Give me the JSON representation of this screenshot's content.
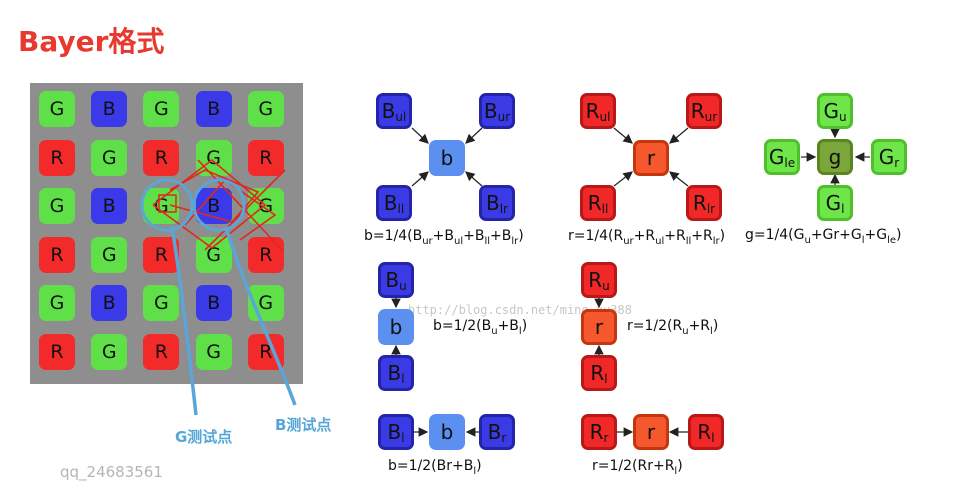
{
  "title": "Bayer格式",
  "grid": {
    "rows": [
      [
        "G",
        "B",
        "G",
        "B",
        "G"
      ],
      [
        "R",
        "G",
        "R",
        "G",
        "R"
      ],
      [
        "G",
        "B",
        "G",
        "B",
        "G"
      ],
      [
        "R",
        "G",
        "R",
        "G",
        "R"
      ],
      [
        "G",
        "B",
        "G",
        "B",
        "G"
      ],
      [
        "R",
        "G",
        "R",
        "G",
        "R"
      ]
    ]
  },
  "colors": {
    "G": "#5fe048",
    "B": "#3a3ae8",
    "R": "#f22a2a",
    "grid_bg": "#8e8e8e",
    "arrow_label": "#56a7d8",
    "title": "#e8392f"
  },
  "test_points": {
    "g": "G测试点",
    "b": "B测试点"
  },
  "author": "qq_24683561",
  "watermark": "http://blog.csdn.net/ming_xu388",
  "diagrams": {
    "b_four": {
      "center": "b",
      "ul": {
        "base": "B",
        "sub": "ul"
      },
      "ur": {
        "base": "B",
        "sub": "ur"
      },
      "ll": {
        "base": "B",
        "sub": "ll"
      },
      "lr": {
        "base": "B",
        "sub": "lr"
      },
      "formula": {
        "p0": "b=1/4(B",
        "s1": "ur",
        "p1": "+B",
        "s2": "ul",
        "p2": "+B",
        "s3": "ll",
        "p3": "+B",
        "s4": "lr",
        "p4": ")"
      }
    },
    "r_four": {
      "center": "r",
      "ul": {
        "base": "R",
        "sub": "ul"
      },
      "ur": {
        "base": "R",
        "sub": "ur"
      },
      "ll": {
        "base": "R",
        "sub": "ll"
      },
      "lr": {
        "base": "R",
        "sub": "lr"
      },
      "formula": {
        "p0": "r=1/4(R",
        "s1": "ur",
        "p1": "+R",
        "s2": "ul",
        "p2": "+R",
        "s3": "ll",
        "p3": "+R",
        "s4": "lr",
        "p4": ")"
      }
    },
    "g_four": {
      "center": "g",
      "u": {
        "base": "G",
        "sub": "u"
      },
      "le": {
        "base": "G",
        "sub": "le"
      },
      "r": {
        "base": "G",
        "sub": "r"
      },
      "l": {
        "base": "G",
        "sub": "l"
      },
      "formula": {
        "p0": "g=1/4(G",
        "s1": "u",
        "p1": "+Gr+G",
        "s2": "l",
        "p2": "+G",
        "s3": "le",
        "p3": ")"
      }
    },
    "b_vert": {
      "center": "b",
      "u": {
        "base": "B",
        "sub": "u"
      },
      "l": {
        "base": "B",
        "sub": "l"
      },
      "formula": {
        "p0": "b=1/2(B",
        "s1": "u",
        "p1": "+B",
        "s2": "l",
        "p2": ")"
      }
    },
    "r_vert": {
      "center": "r",
      "u": {
        "base": "R",
        "sub": "u"
      },
      "l": {
        "base": "R",
        "sub": "l"
      },
      "formula": {
        "p0": "r=1/2(R",
        "s1": "u",
        "p1": "+R",
        "s2": "l",
        "p2": ")"
      }
    },
    "b_horiz": {
      "center": "b",
      "l": {
        "base": "B",
        "sub": "l"
      },
      "r": {
        "base": "B",
        "sub": "r"
      },
      "formula": {
        "p0": "b=1/2(Br+B",
        "s1": "l",
        "p1": ")"
      }
    },
    "r_horiz": {
      "center": "r",
      "r": {
        "base": "R",
        "sub": "r"
      },
      "l": {
        "base": "R",
        "sub": "l"
      },
      "formula": {
        "p0": "r=1/2(Rr+R",
        "s1": "l",
        "p1": ")"
      }
    }
  }
}
